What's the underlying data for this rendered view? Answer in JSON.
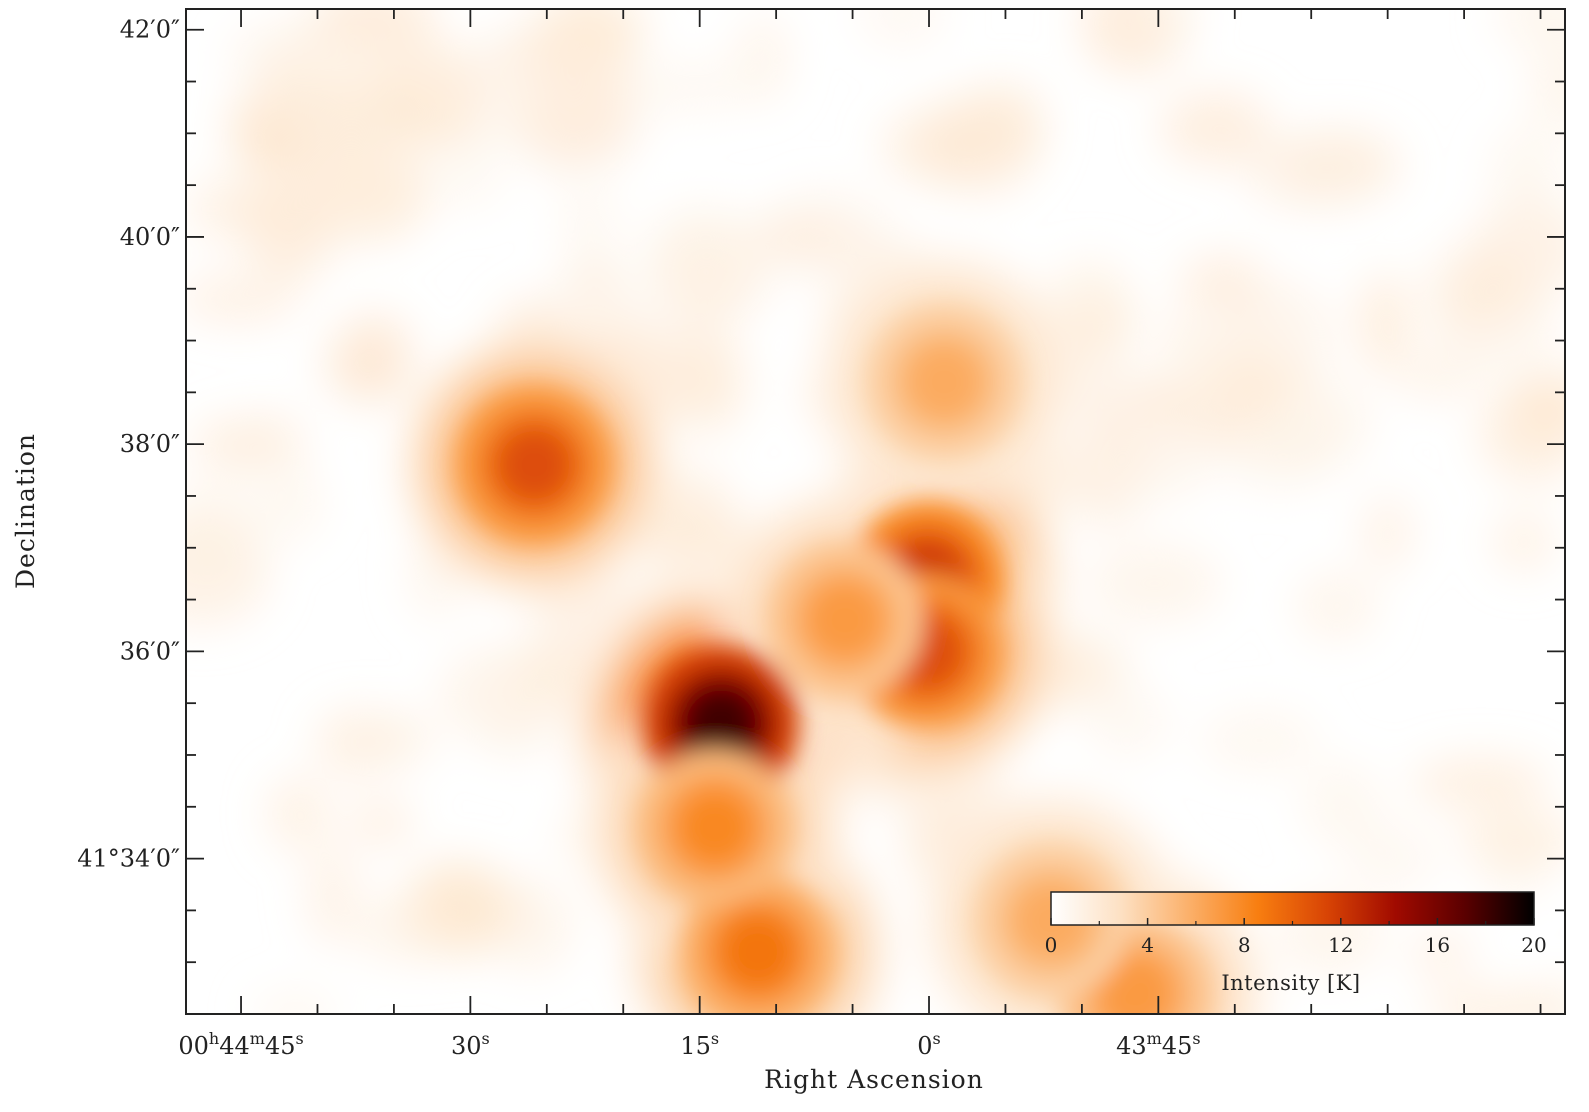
{
  "chart_data": {
    "type": "heatmap",
    "title": "",
    "xlabel": "Right Ascension",
    "ylabel": "Declination",
    "x_axis": {
      "units": "seconds of RA (relative to 00h44m00s)",
      "range": [
        48.6,
        -41.6
      ],
      "ticks": [
        {
          "value": 45,
          "label_parts": [
            "00",
            "h",
            "44",
            "m",
            "45",
            "s"
          ]
        },
        {
          "value": 30,
          "label_parts": [
            "",
            "",
            "",
            "",
            "30",
            "s"
          ]
        },
        {
          "value": 15,
          "label_parts": [
            "",
            "",
            "",
            "",
            "15",
            "s"
          ]
        },
        {
          "value": 0,
          "label_parts": [
            "",
            "",
            "",
            "",
            "0",
            "s"
          ]
        },
        {
          "value": -15,
          "label_parts": [
            "",
            "",
            "43",
            "m",
            "45",
            "s"
          ]
        }
      ]
    },
    "y_axis": {
      "units": "arcminutes above +41°",
      "range": [
        32.5,
        42.2
      ],
      "ticks": [
        {
          "value": 34,
          "label": "41°34′0″"
        },
        {
          "value": 36,
          "label": "36′0″"
        },
        {
          "value": 38,
          "label": "38′0″"
        },
        {
          "value": 40,
          "label": "40′0″"
        },
        {
          "value": 42,
          "label": "42′0″"
        }
      ]
    },
    "colorbar": {
      "title": "Intensity [K]",
      "range": [
        0,
        20
      ],
      "tick_labels": [
        "0",
        "4",
        "8",
        "12",
        "16",
        "20"
      ],
      "colors": [
        "#ffffff",
        "#fde1c4",
        "#fbb06a",
        "#f87e10",
        "#d84405",
        "#a00a00",
        "#5a0000",
        "#000000"
      ],
      "placement": "bottom-right inside plot"
    },
    "emission_peaks": [
      {
        "ra": 13.6,
        "dec": 35.3,
        "intensity": 18
      },
      {
        "ra": 0.1,
        "dec": 36.7,
        "intensity": 12
      },
      {
        "ra": 0.2,
        "dec": 36.0,
        "intensity": 11
      },
      {
        "ra": 25.8,
        "dec": 37.8,
        "intensity": 11
      },
      {
        "ra": 11.2,
        "dec": 33.1,
        "intensity": 9
      },
      {
        "ra": -1.0,
        "dec": 38.6,
        "intensity": 6
      },
      {
        "ra": 5.5,
        "dec": 36.3,
        "intensity": 7
      },
      {
        "ra": -13.5,
        "dec": 32.7,
        "intensity": 7
      },
      {
        "ra": 14.0,
        "dec": 34.3,
        "intensity": 8
      },
      {
        "ra": -8.0,
        "dec": 33.4,
        "intensity": 6
      }
    ]
  }
}
